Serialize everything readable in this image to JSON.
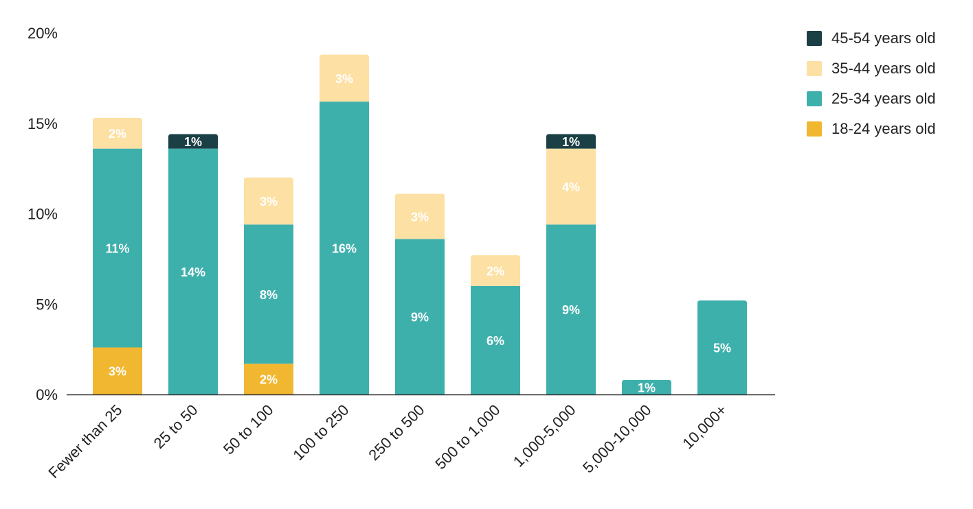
{
  "chart_data": {
    "type": "bar",
    "stacked": true,
    "categories": [
      "Fewer than 25",
      "25 to 50",
      "50 to 100",
      "100 to 250",
      "250 to 500",
      "500 to 1,000",
      "1,000-5,000",
      "5,000-10,000",
      "10,000+"
    ],
    "series": [
      {
        "name": "18-24 years old",
        "color": "#f2b731",
        "values": [
          2.6,
          0,
          1.7,
          0,
          0,
          0,
          0,
          0,
          0
        ],
        "labels": [
          "3%",
          "",
          "2%",
          "",
          "",
          "",
          "",
          "",
          ""
        ]
      },
      {
        "name": "25-34 years old",
        "color": "#3eb0ac",
        "values": [
          11.0,
          13.6,
          7.7,
          16.2,
          8.6,
          6.0,
          9.4,
          0.8,
          5.2
        ],
        "labels": [
          "11%",
          "14%",
          "8%",
          "16%",
          "9%",
          "6%",
          "9%",
          "1%",
          "5%"
        ]
      },
      {
        "name": "35-44 years old",
        "color": "#fde0a4",
        "values": [
          1.7,
          0,
          2.6,
          2.6,
          2.5,
          1.7,
          4.2,
          0,
          0
        ],
        "labels": [
          "2%",
          "",
          "3%",
          "3%",
          "3%",
          "2%",
          "4%",
          "",
          ""
        ]
      },
      {
        "name": "45-54 years old",
        "color": "#1a3f44",
        "values": [
          0,
          0.8,
          0,
          0,
          0,
          0,
          0.8,
          0,
          0
        ],
        "labels": [
          "",
          "1%",
          "",
          "",
          "",
          "",
          "1%",
          "",
          ""
        ]
      }
    ],
    "legend_order": [
      "45-54 years old",
      "35-44 years old",
      "25-34 years old",
      "18-24 years old"
    ],
    "yticks": [
      "0%",
      "5%",
      "10%",
      "15%",
      "20%"
    ],
    "ylim": [
      0,
      20
    ],
    "grid": false,
    "legend_position": "right"
  }
}
